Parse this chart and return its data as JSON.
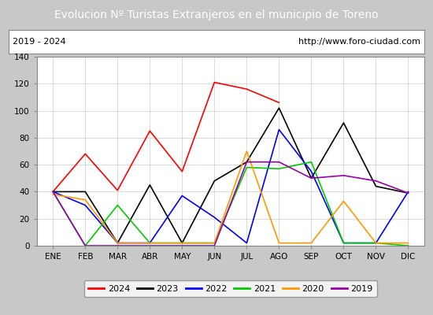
{
  "title": "Evolucion Nº Turistas Extranjeros en el municipio de Toreno",
  "subtitle_left": "2019 - 2024",
  "subtitle_right": "http://www.foro-ciudad.com",
  "months": [
    "ENE",
    "FEB",
    "MAR",
    "ABR",
    "MAY",
    "JUN",
    "JUL",
    "AGO",
    "SEP",
    "OCT",
    "NOV",
    "DIC"
  ],
  "series": {
    "2024": [
      40,
      68,
      41,
      85,
      55,
      121,
      116,
      106,
      null,
      null,
      null,
      null
    ],
    "2023": [
      40,
      40,
      2,
      45,
      2,
      48,
      62,
      102,
      50,
      91,
      44,
      39
    ],
    "2022": [
      40,
      30,
      2,
      2,
      37,
      21,
      2,
      86,
      55,
      2,
      2,
      40
    ],
    "2021": [
      40,
      0,
      30,
      2,
      2,
      2,
      58,
      57,
      62,
      2,
      2,
      0
    ],
    "2020": [
      38,
      34,
      2,
      2,
      2,
      2,
      70,
      2,
      2,
      33,
      2,
      2
    ],
    "2019": [
      40,
      0,
      0,
      0,
      0,
      0,
      62,
      62,
      50,
      52,
      48,
      39
    ]
  },
  "colors": {
    "2024": "#ff0000",
    "2023": "#000000",
    "2022": "#0000ff",
    "2021": "#00cc00",
    "2020": "#ff9900",
    "2019": "#9900aa"
  },
  "ylim": [
    0,
    140
  ],
  "yticks": [
    0,
    20,
    40,
    60,
    80,
    100,
    120,
    140
  ],
  "title_bg": "#4a86c8",
  "title_color": "#ffffff",
  "fig_bg": "#c8c8c8",
  "plot_bg": "#e8e8e8",
  "chart_bg": "#ffffff"
}
